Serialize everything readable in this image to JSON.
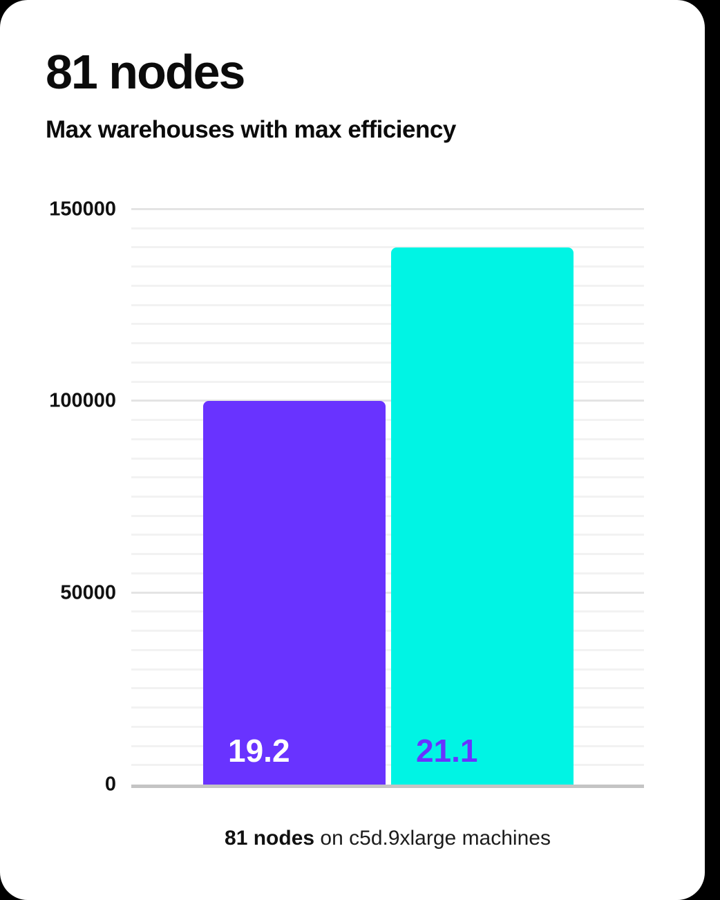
{
  "page": {
    "background_color": "#000000",
    "card_color": "#ffffff"
  },
  "header": {
    "title": "81 nodes",
    "subtitle": "Max warehouses with max efficiency"
  },
  "chart_data": {
    "type": "bar",
    "title": "81 nodes",
    "subtitle": "Max warehouses with max efficiency",
    "categories": [
      "19.2",
      "21.1"
    ],
    "values": [
      100000,
      140000
    ],
    "bar_labels": [
      "19.2",
      "21.1"
    ],
    "bar_colors": [
      "#6933ff",
      "#00f4e4"
    ],
    "bar_label_colors": [
      "#ffffff",
      "#6933ff"
    ],
    "xlabel": "",
    "ylabel": "",
    "ylim": [
      0,
      150000
    ],
    "ytick_values": [
      0,
      50000,
      100000,
      150000
    ],
    "ytick_labels": [
      "0",
      "50000",
      "100000",
      "150000"
    ],
    "minor_grid_step": 5000,
    "grid": "horizontal-minor-and-major",
    "legend_position": "none"
  },
  "caption": {
    "bold": "81 nodes",
    "rest": " on c5d.9xlarge machines"
  }
}
